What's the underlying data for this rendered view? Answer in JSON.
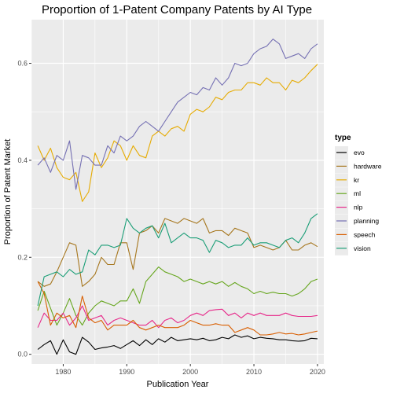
{
  "chart_data": {
    "type": "line",
    "title": "Proportion of 1-Patent Company Patents by AI Type",
    "xlabel": "Publication Year",
    "ylabel": "Proportion of Patent Market",
    "xlim": [
      1975,
      2021
    ],
    "ylim": [
      -0.02,
      0.69
    ],
    "x_ticks": [
      1980,
      1990,
      2000,
      2010,
      2020
    ],
    "y_ticks": [
      0.0,
      0.2,
      0.4,
      0.6
    ],
    "y_tick_labels": [
      "0.0",
      "0.2",
      "0.4",
      "0.6"
    ],
    "grid": true,
    "background": "#ebebeb",
    "legend_title": "type",
    "legend_position": "right",
    "x": [
      1976,
      1977,
      1978,
      1979,
      1980,
      1981,
      1982,
      1983,
      1984,
      1985,
      1986,
      1987,
      1988,
      1989,
      1990,
      1991,
      1992,
      1993,
      1994,
      1995,
      1996,
      1997,
      1998,
      1999,
      2000,
      2001,
      2002,
      2003,
      2004,
      2005,
      2006,
      2007,
      2008,
      2009,
      2010,
      2011,
      2012,
      2013,
      2014,
      2015,
      2016,
      2017,
      2018,
      2019,
      2020
    ],
    "series": [
      {
        "name": "evo",
        "color": "#000000",
        "values": [
          0.01,
          0.02,
          0.028,
          0.0,
          0.03,
          0.005,
          0.0,
          0.035,
          0.025,
          0.01,
          0.013,
          0.015,
          0.018,
          0.012,
          0.02,
          0.028,
          0.018,
          0.03,
          0.02,
          0.032,
          0.025,
          0.035,
          0.028,
          0.03,
          0.032,
          0.03,
          0.033,
          0.028,
          0.03,
          0.035,
          0.032,
          0.04,
          0.035,
          0.038,
          0.032,
          0.035,
          0.033,
          0.032,
          0.03,
          0.03,
          0.028,
          0.027,
          0.028,
          0.033,
          0.032
        ]
      },
      {
        "name": "hardware",
        "color": "#a6761d",
        "values": [
          0.15,
          0.14,
          0.145,
          0.17,
          0.2,
          0.23,
          0.225,
          0.14,
          0.15,
          0.165,
          0.2,
          0.185,
          0.185,
          0.23,
          0.23,
          0.175,
          0.25,
          0.255,
          0.265,
          0.25,
          0.28,
          0.275,
          0.27,
          0.28,
          0.275,
          0.27,
          0.28,
          0.25,
          0.255,
          0.255,
          0.245,
          0.26,
          0.255,
          0.25,
          0.22,
          0.225,
          0.22,
          0.215,
          0.22,
          0.235,
          0.215,
          0.215,
          0.225,
          0.23,
          0.222
        ]
      },
      {
        "name": "kr",
        "color": "#e6ab02",
        "values": [
          0.43,
          0.4,
          0.425,
          0.385,
          0.365,
          0.36,
          0.375,
          0.315,
          0.335,
          0.415,
          0.385,
          0.405,
          0.44,
          0.43,
          0.4,
          0.43,
          0.41,
          0.405,
          0.45,
          0.46,
          0.45,
          0.465,
          0.47,
          0.46,
          0.495,
          0.505,
          0.5,
          0.51,
          0.53,
          0.525,
          0.54,
          0.545,
          0.545,
          0.56,
          0.56,
          0.555,
          0.57,
          0.56,
          0.56,
          0.545,
          0.565,
          0.56,
          0.57,
          0.585,
          0.598
        ]
      },
      {
        "name": "ml",
        "color": "#66a61e",
        "values": [
          0.09,
          0.13,
          0.095,
          0.06,
          0.085,
          0.115,
          0.08,
          0.06,
          0.085,
          0.1,
          0.11,
          0.105,
          0.1,
          0.11,
          0.11,
          0.135,
          0.105,
          0.15,
          0.165,
          0.18,
          0.17,
          0.165,
          0.16,
          0.15,
          0.155,
          0.15,
          0.145,
          0.15,
          0.145,
          0.15,
          0.14,
          0.148,
          0.14,
          0.135,
          0.125,
          0.13,
          0.125,
          0.128,
          0.125,
          0.125,
          0.12,
          0.125,
          0.135,
          0.15,
          0.155
        ]
      },
      {
        "name": "nlp",
        "color": "#e7298a",
        "values": [
          0.055,
          0.085,
          0.07,
          0.07,
          0.085,
          0.06,
          0.075,
          0.1,
          0.07,
          0.075,
          0.08,
          0.06,
          0.07,
          0.075,
          0.07,
          0.065,
          0.06,
          0.06,
          0.07,
          0.055,
          0.07,
          0.075,
          0.065,
          0.07,
          0.08,
          0.085,
          0.08,
          0.09,
          0.092,
          0.093,
          0.08,
          0.085,
          0.075,
          0.085,
          0.08,
          0.085,
          0.08,
          0.08,
          0.08,
          0.085,
          0.08,
          0.078,
          0.078,
          0.078,
          0.08
        ]
      },
      {
        "name": "planning",
        "color": "#7570b3",
        "values": [
          0.39,
          0.405,
          0.375,
          0.41,
          0.4,
          0.44,
          0.34,
          0.41,
          0.405,
          0.39,
          0.39,
          0.43,
          0.415,
          0.45,
          0.44,
          0.45,
          0.47,
          0.48,
          0.47,
          0.46,
          0.48,
          0.5,
          0.52,
          0.53,
          0.54,
          0.535,
          0.55,
          0.545,
          0.57,
          0.555,
          0.57,
          0.6,
          0.595,
          0.6,
          0.62,
          0.63,
          0.635,
          0.65,
          0.64,
          0.61,
          0.615,
          0.62,
          0.61,
          0.63,
          0.64
        ]
      },
      {
        "name": "speech",
        "color": "#d95f02",
        "values": [
          0.15,
          0.125,
          0.06,
          0.085,
          0.075,
          0.08,
          0.055,
          0.12,
          0.075,
          0.065,
          0.07,
          0.05,
          0.06,
          0.06,
          0.06,
          0.07,
          0.055,
          0.05,
          0.055,
          0.06,
          0.055,
          0.055,
          0.055,
          0.06,
          0.07,
          0.065,
          0.06,
          0.06,
          0.063,
          0.06,
          0.06,
          0.045,
          0.05,
          0.055,
          0.05,
          0.04,
          0.04,
          0.042,
          0.045,
          0.042,
          0.043,
          0.04,
          0.042,
          0.045,
          0.048
        ]
      },
      {
        "name": "vision",
        "color": "#1b9e77",
        "values": [
          0.1,
          0.16,
          0.165,
          0.17,
          0.16,
          0.175,
          0.165,
          0.17,
          0.215,
          0.205,
          0.225,
          0.225,
          0.22,
          0.225,
          0.28,
          0.26,
          0.25,
          0.26,
          0.265,
          0.24,
          0.27,
          0.23,
          0.24,
          0.25,
          0.24,
          0.24,
          0.235,
          0.21,
          0.235,
          0.23,
          0.22,
          0.225,
          0.225,
          0.24,
          0.225,
          0.23,
          0.23,
          0.225,
          0.22,
          0.235,
          0.24,
          0.23,
          0.25,
          0.28,
          0.29
        ]
      }
    ]
  }
}
